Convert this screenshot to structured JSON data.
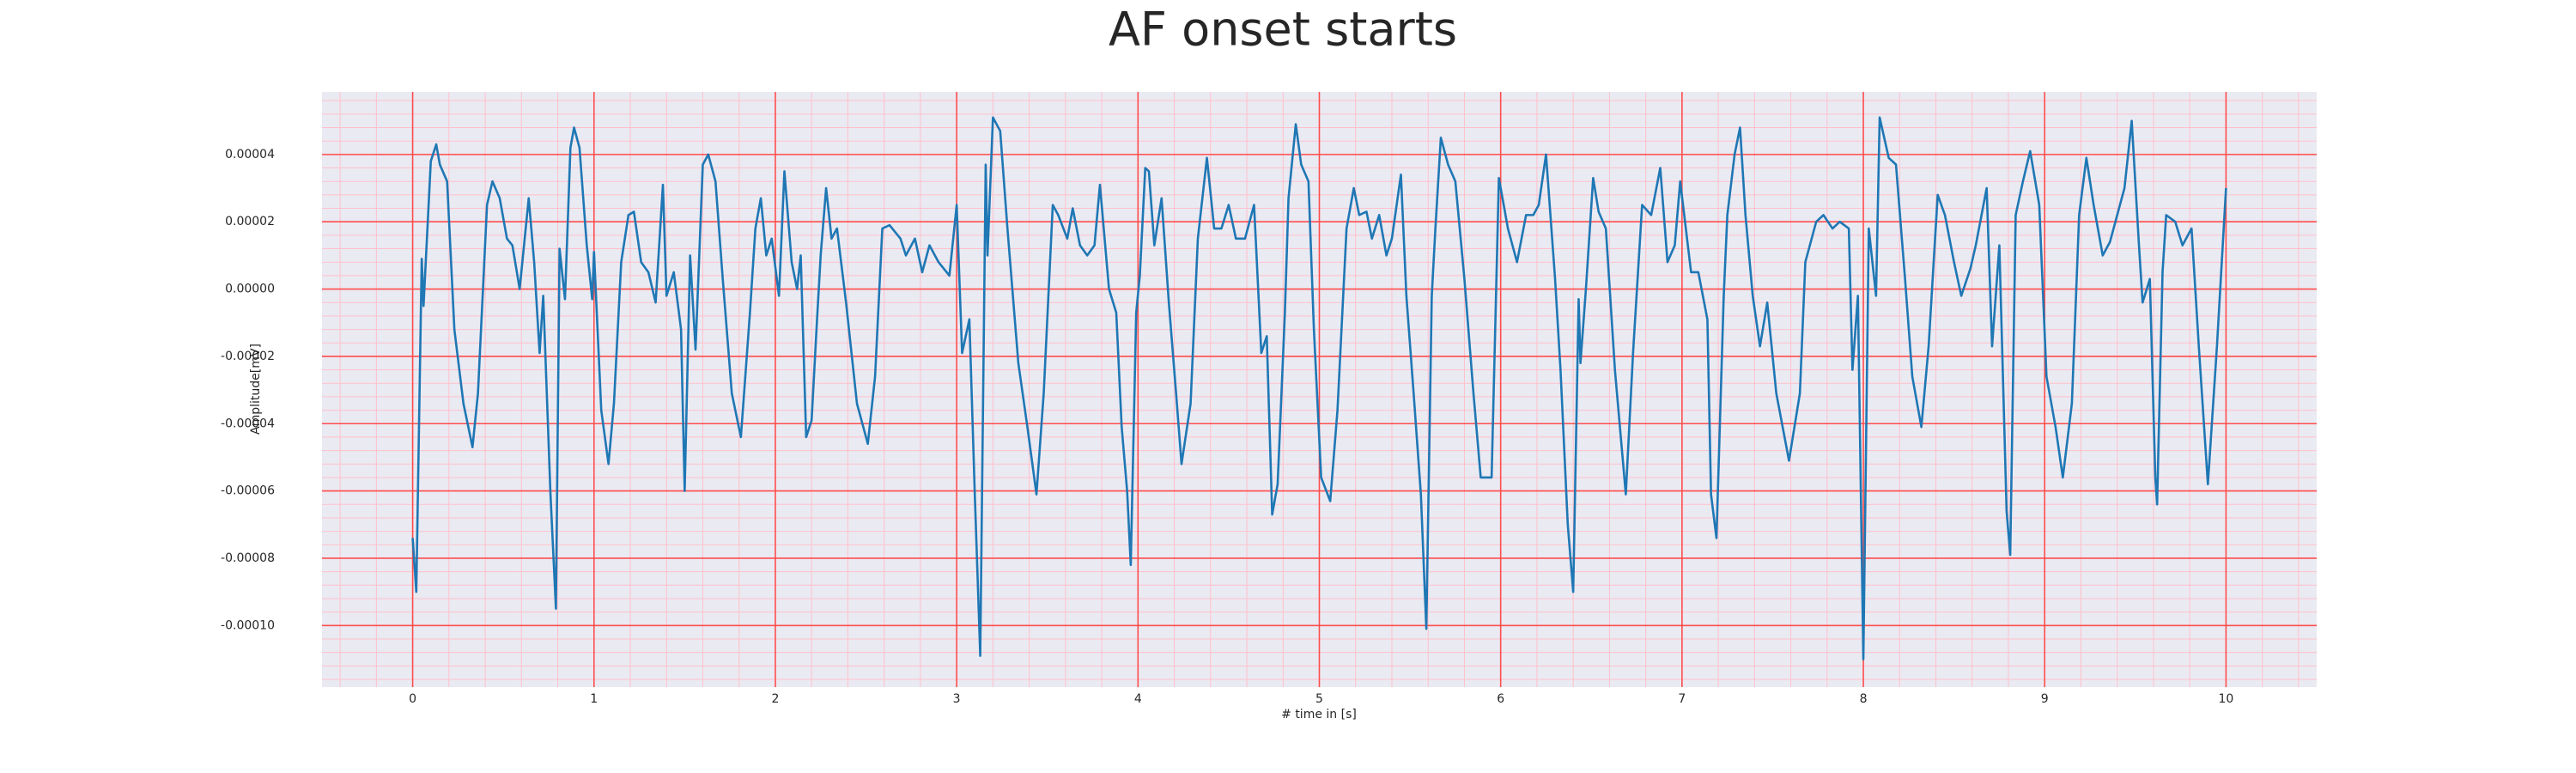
{
  "chart_data": {
    "type": "line",
    "title": "AF onset starts",
    "x_label": "# time in [s]",
    "y_label": "Amplitude[mV]",
    "color": "#1f77b4",
    "grid": true,
    "minor_grid": true,
    "major_grid_color": "#ff4d4d",
    "minor_grid_color": "#ffc0cb",
    "background": "#eaeaf2",
    "xlim": [
      -0.5,
      10.5
    ],
    "xticks": [
      0,
      1,
      2,
      3,
      4,
      5,
      6,
      7,
      8,
      9,
      10
    ],
    "ylim": [
      -0.0001183,
      5.86e-05
    ],
    "yticks": [
      {
        "value": -0.0001,
        "label": "-0.00010"
      },
      {
        "value": -8e-05,
        "label": "-0.00008"
      },
      {
        "value": -6e-05,
        "label": "-0.00006"
      },
      {
        "value": -4e-05,
        "label": "-0.00004"
      },
      {
        "value": -2e-05,
        "label": "-0.00002"
      },
      {
        "value": 0,
        "label": "0.00000"
      },
      {
        "value": 2e-05,
        "label": "0.00002"
      },
      {
        "value": 4e-05,
        "label": "0.00004"
      }
    ],
    "x": [
      0,
      0.02,
      0.05,
      0.06,
      0.1,
      0.13,
      0.15,
      0.19,
      0.23,
      0.28,
      0.33,
      0.36,
      0.41,
      0.44,
      0.48,
      0.52,
      0.55,
      0.59,
      0.64,
      0.67,
      0.7,
      0.72,
      0.76,
      0.79,
      0.81,
      0.84,
      0.87,
      0.89,
      0.92,
      0.96,
      0.99,
      1.0,
      1.04,
      1.08,
      1.11,
      1.15,
      1.19,
      1.22,
      1.26,
      1.3,
      1.34,
      1.38,
      1.4,
      1.44,
      1.48,
      1.5,
      1.53,
      1.56,
      1.6,
      1.63,
      1.67,
      1.71,
      1.76,
      1.81,
      1.86,
      1.89,
      1.92,
      1.95,
      1.98,
      2.02,
      2.05,
      2.09,
      2.12,
      2.14,
      2.17,
      2.2,
      2.23,
      2.25,
      2.28,
      2.31,
      2.34,
      2.39,
      2.45,
      2.51,
      2.55,
      2.59,
      2.63,
      2.69,
      2.72,
      2.77,
      2.81,
      2.85,
      2.9,
      2.96,
      3.0,
      3.03,
      3.07,
      3.1,
      3.13,
      3.16,
      3.17,
      3.2,
      3.24,
      3.28,
      3.34,
      3.39,
      3.44,
      3.48,
      3.53,
      3.56,
      3.61,
      3.64,
      3.68,
      3.72,
      3.76,
      3.79,
      3.84,
      3.88,
      3.91,
      3.94,
      3.96,
      3.99,
      4.01,
      4.04,
      4.06,
      4.09,
      4.13,
      4.17,
      4.21,
      4.24,
      4.29,
      4.33,
      4.38,
      4.42,
      4.46,
      4.5,
      4.54,
      4.59,
      4.64,
      4.68,
      4.71,
      4.74,
      4.77,
      4.81,
      4.83,
      4.87,
      4.9,
      4.94,
      4.97,
      5.01,
      5.06,
      5.1,
      5.15,
      5.19,
      5.22,
      5.26,
      5.29,
      5.33,
      5.37,
      5.4,
      5.45,
      5.48,
      5.52,
      5.56,
      5.59,
      5.62,
      5.64,
      5.67,
      5.71,
      5.75,
      5.8,
      5.85,
      5.89,
      5.95,
      5.99,
      6.04,
      6.09,
      6.14,
      6.18,
      6.21,
      6.25,
      6.3,
      6.33,
      6.37,
      6.4,
      6.43,
      6.44,
      6.47,
      6.51,
      6.54,
      6.58,
      6.63,
      6.69,
      6.73,
      6.78,
      6.83,
      6.88,
      6.92,
      6.96,
      6.99,
      7.05,
      7.09,
      7.14,
      7.16,
      7.19,
      7.23,
      7.25,
      7.29,
      7.32,
      7.35,
      7.39,
      7.43,
      7.47,
      7.52,
      7.59,
      7.65,
      7.68,
      7.74,
      7.78,
      7.83,
      7.87,
      7.92,
      7.94,
      7.97,
      8.0,
      8.03,
      8.07,
      8.09,
      8.14,
      8.18,
      8.23,
      8.27,
      8.32,
      8.36,
      8.41,
      8.45,
      8.5,
      8.54,
      8.59,
      8.62,
      8.68,
      8.71,
      8.75,
      8.79,
      8.81,
      8.84,
      8.88,
      8.92,
      8.97,
      9.01,
      9.06,
      9.1,
      9.15,
      9.19,
      9.23,
      9.27,
      9.32,
      9.36,
      9.4,
      9.44,
      9.48,
      9.52,
      9.54,
      9.58,
      9.61,
      9.62,
      9.65,
      9.67,
      9.72,
      9.76,
      9.81,
      9.85,
      9.9,
      9.95,
      10.0
    ],
    "values": [
      -7.4e-05,
      -9e-05,
      9e-06,
      -5e-06,
      3.8e-05,
      4.3e-05,
      3.7e-05,
      3.2e-05,
      -1.2e-05,
      -3.4e-05,
      -4.7e-05,
      -3.1e-05,
      2.5e-05,
      3.2e-05,
      2.7e-05,
      1.5e-05,
      1.3e-05,
      0,
      2.7e-05,
      8e-06,
      -1.9e-05,
      -2e-06,
      -6.1e-05,
      -9.5e-05,
      1.2e-05,
      -3e-06,
      4.2e-05,
      4.8e-05,
      4.2e-05,
      1.3e-05,
      -3e-06,
      1.1e-05,
      -3.6e-05,
      -5.2e-05,
      -3.4e-05,
      8e-06,
      2.2e-05,
      2.3e-05,
      8e-06,
      5e-06,
      -4e-06,
      3.1e-05,
      -2e-06,
      5e-06,
      -1.2e-05,
      -6e-05,
      1e-05,
      -1.8e-05,
      3.7e-05,
      4e-05,
      3.2e-05,
      3e-06,
      -3.1e-05,
      -4.4e-05,
      -7e-06,
      1.8e-05,
      2.7e-05,
      1e-05,
      1.5e-05,
      -2e-06,
      3.5e-05,
      8e-06,
      0,
      1e-05,
      -4.4e-05,
      -3.9e-05,
      -9e-06,
      1e-05,
      3e-05,
      1.5e-05,
      1.8e-05,
      -4e-06,
      -3.4e-05,
      -4.6e-05,
      -2.6e-05,
      1.8e-05,
      1.9e-05,
      1.5e-05,
      1e-05,
      1.5e-05,
      5e-06,
      1.3e-05,
      8e-06,
      4e-06,
      2.5e-05,
      -1.9e-05,
      -9e-06,
      -6.1e-05,
      -0.000109,
      3.7e-05,
      1e-05,
      5.1e-05,
      4.7e-05,
      1.8e-05,
      -2.2e-05,
      -4.1e-05,
      -6.1e-05,
      -3.1e-05,
      2.5e-05,
      2.2e-05,
      1.5e-05,
      2.4e-05,
      1.3e-05,
      1e-05,
      1.3e-05,
      3.1e-05,
      0,
      -7e-06,
      -4.1e-05,
      -6e-05,
      -8.2e-05,
      -7e-06,
      4e-06,
      3.6e-05,
      3.5e-05,
      1.3e-05,
      2.7e-05,
      -4e-06,
      -3.1e-05,
      -5.2e-05,
      -3.4e-05,
      1.5e-05,
      3.9e-05,
      1.8e-05,
      1.8e-05,
      2.5e-05,
      1.5e-05,
      1.5e-05,
      2.5e-05,
      -1.9e-05,
      -1.4e-05,
      -6.7e-05,
      -5.8e-05,
      -7e-06,
      2.7e-05,
      4.9e-05,
      3.7e-05,
      3.2e-05,
      -1.2e-05,
      -5.6e-05,
      -6.3e-05,
      -3.6e-05,
      1.8e-05,
      3e-05,
      2.2e-05,
      2.3e-05,
      1.5e-05,
      2.2e-05,
      1e-05,
      1.5e-05,
      3.4e-05,
      -2e-06,
      -3.1e-05,
      -6.1e-05,
      -0.000101,
      -2e-06,
      1.8e-05,
      4.5e-05,
      3.7e-05,
      3.2e-05,
      3e-06,
      -3.1e-05,
      -5.6e-05,
      -5.6e-05,
      3.3e-05,
      1.8e-05,
      8e-06,
      2.2e-05,
      2.2e-05,
      2.5e-05,
      4e-05,
      3e-06,
      -2.4e-05,
      -7e-05,
      -9e-05,
      -3e-06,
      -2.2e-05,
      0,
      3.3e-05,
      2.3e-05,
      1.8e-05,
      -2.4e-05,
      -6.1e-05,
      -1.9e-05,
      2.5e-05,
      2.2e-05,
      3.6e-05,
      8e-06,
      1.3e-05,
      3.2e-05,
      5e-06,
      5e-06,
      -9e-06,
      -6.1e-05,
      -7.4e-05,
      -2e-06,
      2.2e-05,
      4e-05,
      4.8e-05,
      2.2e-05,
      -2e-06,
      -1.7e-05,
      -4e-06,
      -3.1e-05,
      -5.1e-05,
      -3.1e-05,
      8e-06,
      2e-05,
      2.2e-05,
      1.8e-05,
      2e-05,
      1.8e-05,
      -2.4e-05,
      -2e-06,
      -0.00011,
      1.8e-05,
      -2e-06,
      5.1e-05,
      3.9e-05,
      3.7e-05,
      3e-06,
      -2.6e-05,
      -4.1e-05,
      -1.7e-05,
      2.8e-05,
      2.2e-05,
      8e-06,
      -2e-06,
      6e-06,
      1.3e-05,
      3e-05,
      -1.7e-05,
      1.3e-05,
      -6.6e-05,
      -7.9e-05,
      2.2e-05,
      3.2e-05,
      4.1e-05,
      2.5e-05,
      -2.6e-05,
      -4.1e-05,
      -5.6e-05,
      -3.4e-05,
      2.2e-05,
      3.9e-05,
      2.5e-05,
      1e-05,
      1.4e-05,
      2.2e-05,
      3e-05,
      5e-05,
      1.3e-05,
      -4e-06,
      3e-06,
      -5.6e-05,
      -6.4e-05,
      5e-06,
      2.2e-05,
      2e-05,
      1.3e-05,
      1.8e-05,
      -1.7e-05,
      -5.8e-05,
      -1.7e-05,
      3e-05
    ]
  }
}
